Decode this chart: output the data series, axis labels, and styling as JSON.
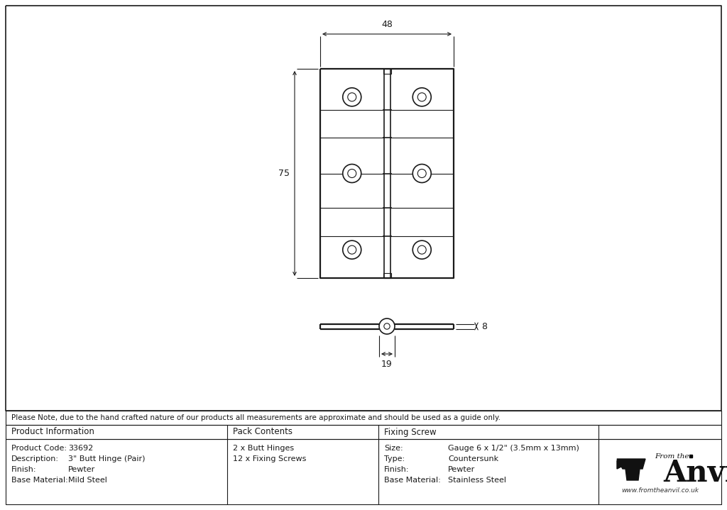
{
  "bg_color": "#ffffff",
  "line_color": "#1a1a1a",
  "dim_color": "#1a1a1a",
  "note_text": "Please Note, due to the hand crafted nature of our products all measurements are approximate and should be used as a guide only.",
  "table": {
    "product_info_title": "Product Information",
    "pack_contents_title": "Pack Contents",
    "fixing_screw_title": "Fixing Screw",
    "product_code_label": "Product Code:",
    "product_code_value": "33692",
    "description_label": "Description:",
    "description_value": "3\" Butt Hinge (Pair)",
    "finish_label": "Finish:",
    "finish_value": "Pewter",
    "base_material_label": "Base Material:",
    "base_material_value": "Mild Steel",
    "pack_contents_lines": [
      "2 x Butt Hinges",
      "12 x Fixing Screws"
    ],
    "size_label": "Size:",
    "size_value": "Gauge 6 x 1/2\" (3.5mm x 13mm)",
    "type_label": "Type:",
    "type_value": "Countersunk",
    "finish2_label": "Finish:",
    "finish2_value": "Pewter",
    "base_material2_label": "Base Material:",
    "base_material2_value": "Stainless Steel"
  },
  "anvil_text1": "From the",
  "anvil_text2": "Anvil",
  "anvil_url": "www.fromtheanvil.co.uk",
  "dim_width": "48",
  "dim_height": "75",
  "dim_pin": "19",
  "dim_thickness": "8"
}
